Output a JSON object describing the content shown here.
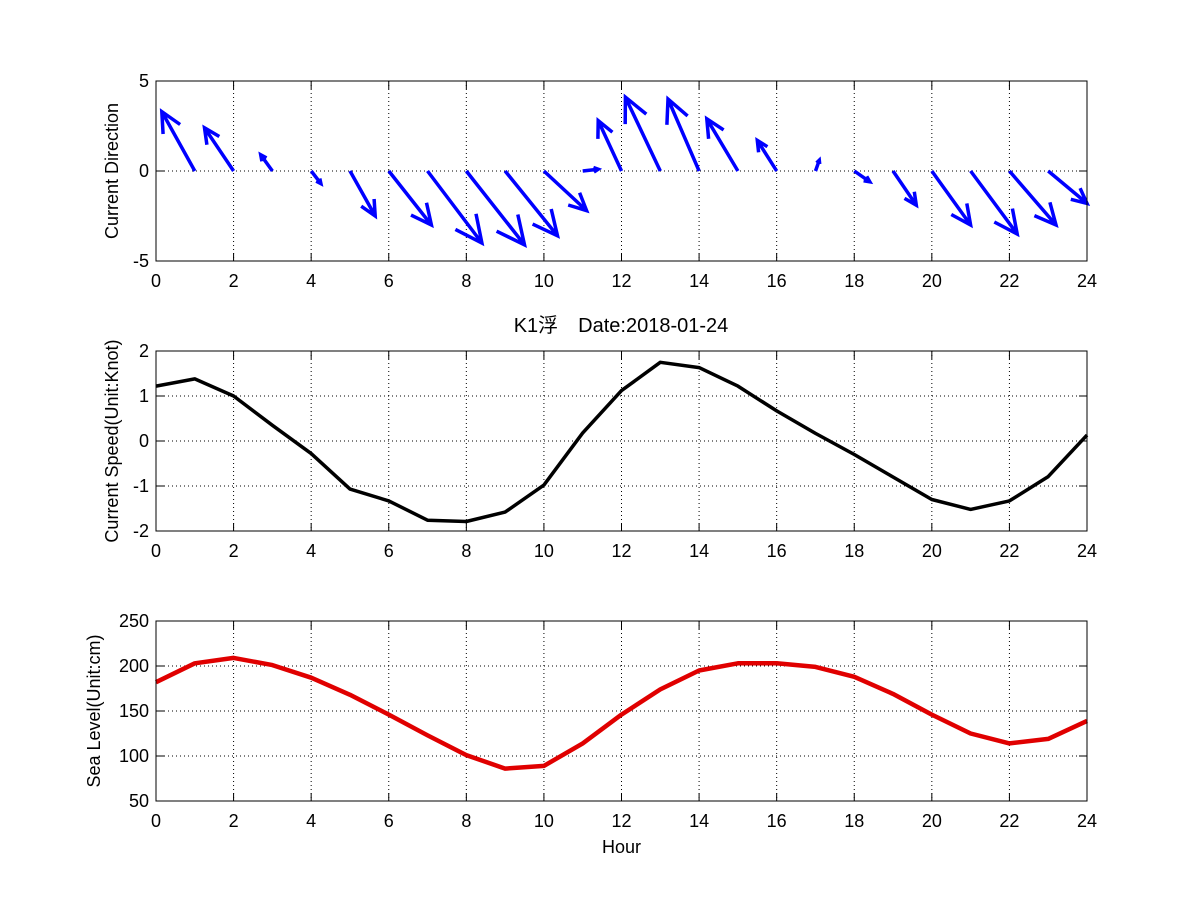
{
  "title": {
    "text": "K1浮　Date:2018-01-24",
    "color": "#e00000"
  },
  "colors": {
    "axis": "#000000",
    "grid": "#000000",
    "arrows": "#0000ff",
    "speed_line": "#000000",
    "sea_level_line": "#e00000"
  },
  "chart_data": [
    {
      "type": "quiver",
      "ylabel": "Current Direction",
      "xlabel": "",
      "xlim": [
        0,
        24
      ],
      "ylim": [
        -5,
        5
      ],
      "xticks": [
        0,
        2,
        4,
        6,
        8,
        10,
        12,
        14,
        16,
        18,
        20,
        22,
        24
      ],
      "yticks": [
        -5,
        0,
        5
      ],
      "grid": true,
      "arrows": [
        {
          "x": 1,
          "u": -0.85,
          "v": 3.3
        },
        {
          "x": 2,
          "u": -0.75,
          "v": 2.4
        },
        {
          "x": 3,
          "u": -0.3,
          "v": 0.9
        },
        {
          "x": 4,
          "u": 0.25,
          "v": -0.7
        },
        {
          "x": 5,
          "u": 0.65,
          "v": -2.5
        },
        {
          "x": 6,
          "u": 1.1,
          "v": -3.0
        },
        {
          "x": 7,
          "u": 1.4,
          "v": -4.0
        },
        {
          "x": 8,
          "u": 1.5,
          "v": -4.1
        },
        {
          "x": 9,
          "u": 1.35,
          "v": -3.6
        },
        {
          "x": 10,
          "u": 1.1,
          "v": -2.2
        },
        {
          "x": 11,
          "u": 0.4,
          "v": 0.1
        },
        {
          "x": 12,
          "u": -0.6,
          "v": 2.8
        },
        {
          "x": 13,
          "u": -0.9,
          "v": 4.1
        },
        {
          "x": 14,
          "u": -0.8,
          "v": 4.0
        },
        {
          "x": 15,
          "u": -0.8,
          "v": 2.9
        },
        {
          "x": 16,
          "u": -0.5,
          "v": 1.7
        },
        {
          "x": 17,
          "u": 0.1,
          "v": 0.6
        },
        {
          "x": 18,
          "u": 0.4,
          "v": -0.6
        },
        {
          "x": 19,
          "u": 0.6,
          "v": -1.9
        },
        {
          "x": 20,
          "u": 1.0,
          "v": -3.0
        },
        {
          "x": 21,
          "u": 1.2,
          "v": -3.5
        },
        {
          "x": 22,
          "u": 1.2,
          "v": -3.0
        },
        {
          "x": 23,
          "u": 1.0,
          "v": -1.8
        }
      ]
    },
    {
      "type": "line",
      "ylabel": "Current Speed(Unit:Knot)",
      "xlabel": "",
      "xlim": [
        0,
        24
      ],
      "ylim": [
        -2,
        2
      ],
      "xticks": [
        0,
        2,
        4,
        6,
        8,
        10,
        12,
        14,
        16,
        18,
        20,
        22,
        24
      ],
      "yticks": [
        -2,
        -1,
        0,
        1,
        2
      ],
      "grid": true,
      "x": [
        0,
        1,
        2,
        3,
        4,
        5,
        6,
        7,
        8,
        9,
        10,
        11,
        12,
        13,
        14,
        15,
        16,
        17,
        18,
        19,
        20,
        21,
        22,
        23,
        24
      ],
      "y": [
        1.22,
        1.38,
        1.0,
        0.35,
        -0.28,
        -1.07,
        -1.33,
        -1.76,
        -1.79,
        -1.58,
        -0.98,
        0.18,
        1.12,
        1.75,
        1.63,
        1.22,
        0.67,
        0.17,
        -0.3,
        -0.8,
        -1.3,
        -1.52,
        -1.33,
        -0.79,
        0.13
      ]
    },
    {
      "type": "line",
      "ylabel": "Sea Level(Unit:cm)",
      "xlabel": "Hour",
      "xlim": [
        0,
        24
      ],
      "ylim": [
        50,
        250
      ],
      "xticks": [
        0,
        2,
        4,
        6,
        8,
        10,
        12,
        14,
        16,
        18,
        20,
        22,
        24
      ],
      "yticks": [
        50,
        100,
        150,
        200,
        250
      ],
      "grid": true,
      "x": [
        0,
        1,
        2,
        3,
        4,
        5,
        6,
        7,
        8,
        9,
        10,
        11,
        12,
        13,
        14,
        15,
        16,
        17,
        18,
        19,
        20,
        21,
        22,
        23,
        24
      ],
      "y": [
        182,
        203,
        209,
        201,
        187,
        168,
        146,
        123,
        101,
        86,
        89,
        114,
        146,
        174,
        195,
        203,
        203,
        199,
        188,
        169,
        146,
        125,
        114,
        119,
        139
      ]
    }
  ]
}
